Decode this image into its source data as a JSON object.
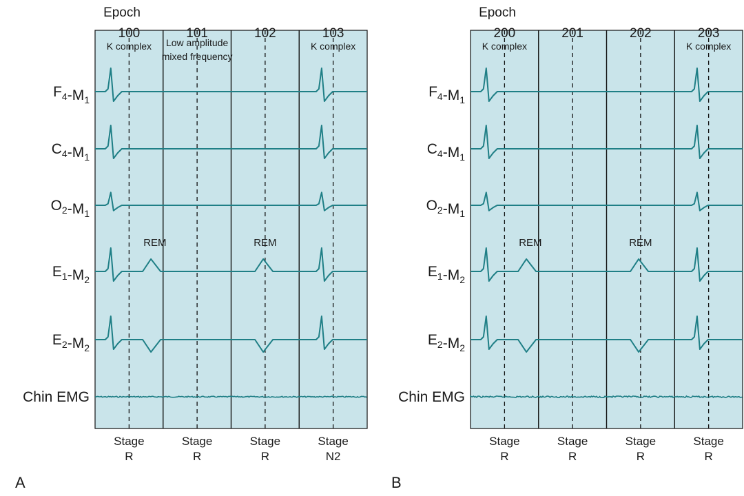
{
  "colors": {
    "panel_bg": "#c9e4ea",
    "trace": "#1f7f86",
    "emg": "#1f7f86",
    "divider": "#111111",
    "text": "#1a1a1a"
  },
  "panels": [
    {
      "id": "A",
      "letter": "A",
      "epoch_heading": "Epoch",
      "epochs": [
        "100",
        "101",
        "102",
        "103"
      ],
      "top_notes": [
        {
          "text": "K complex",
          "epoch": 0
        },
        {
          "text": "Low amplitude",
          "epoch": 1
        },
        {
          "text": "mixed frequency",
          "epoch": 1
        },
        {
          "text": "K complex",
          "epoch": 3
        }
      ],
      "rem_labels": [
        {
          "text": "REM",
          "epoch": 0
        },
        {
          "text": "REM",
          "epoch": 2
        }
      ],
      "channels": [
        {
          "label": "F4-M1",
          "kind": "eeg",
          "amp": 1.0,
          "k_epochs": [
            0,
            3
          ]
        },
        {
          "label": "C4-M1",
          "kind": "eeg",
          "amp": 1.0,
          "k_epochs": [
            0,
            3
          ]
        },
        {
          "label": "O2-M1",
          "kind": "eeg",
          "amp": 0.55,
          "k_epochs": [
            0,
            3
          ]
        },
        {
          "label": "E1-M2",
          "kind": "eog",
          "amp": 1.0,
          "k_epochs": [
            0,
            3
          ],
          "rem_epochs": [
            0,
            2
          ],
          "rem_dir": "up"
        },
        {
          "label": "E2-M2",
          "kind": "eog",
          "amp": 1.0,
          "k_epochs": [
            0,
            3
          ],
          "rem_epochs": [
            0,
            2
          ],
          "rem_dir": "down"
        },
        {
          "label": "Chin EMG",
          "kind": "emg",
          "amp": 0.4
        }
      ],
      "stages": [
        {
          "line1": "Stage",
          "line2": "R"
        },
        {
          "line1": "Stage",
          "line2": "R"
        },
        {
          "line1": "Stage",
          "line2": "R"
        },
        {
          "line1": "Stage",
          "line2": "N2"
        }
      ]
    },
    {
      "id": "B",
      "letter": "B",
      "epoch_heading": "Epoch",
      "epochs": [
        "200",
        "201",
        "202",
        "203"
      ],
      "top_notes": [
        {
          "text": "K complex",
          "epoch": 0
        },
        {
          "text": "K complex",
          "epoch": 3
        }
      ],
      "rem_labels": [
        {
          "text": "REM",
          "epoch": 0
        },
        {
          "text": "REM",
          "epoch": 2
        }
      ],
      "channels": [
        {
          "label": "F4-M1",
          "kind": "eeg",
          "amp": 1.0,
          "k_epochs": [
            0,
            3
          ]
        },
        {
          "label": "C4-M1",
          "kind": "eeg",
          "amp": 1.0,
          "k_epochs": [
            0,
            3
          ]
        },
        {
          "label": "O2-M1",
          "kind": "eeg",
          "amp": 0.55,
          "k_epochs": [
            0,
            3
          ]
        },
        {
          "label": "E1-M2",
          "kind": "eog",
          "amp": 1.0,
          "k_epochs": [
            0,
            3
          ],
          "rem_epochs": [
            0,
            2
          ],
          "rem_dir": "up"
        },
        {
          "label": "E2-M2",
          "kind": "eog",
          "amp": 1.0,
          "k_epochs": [
            0,
            3
          ],
          "rem_epochs": [
            0,
            2
          ],
          "rem_dir": "down"
        },
        {
          "label": "Chin EMG",
          "kind": "emg",
          "amp": 0.55
        }
      ],
      "stages": [
        {
          "line1": "Stage",
          "line2": "R"
        },
        {
          "line1": "Stage",
          "line2": "R"
        },
        {
          "line1": "Stage",
          "line2": "R"
        },
        {
          "line1": "Stage",
          "line2": "R"
        }
      ]
    }
  ]
}
